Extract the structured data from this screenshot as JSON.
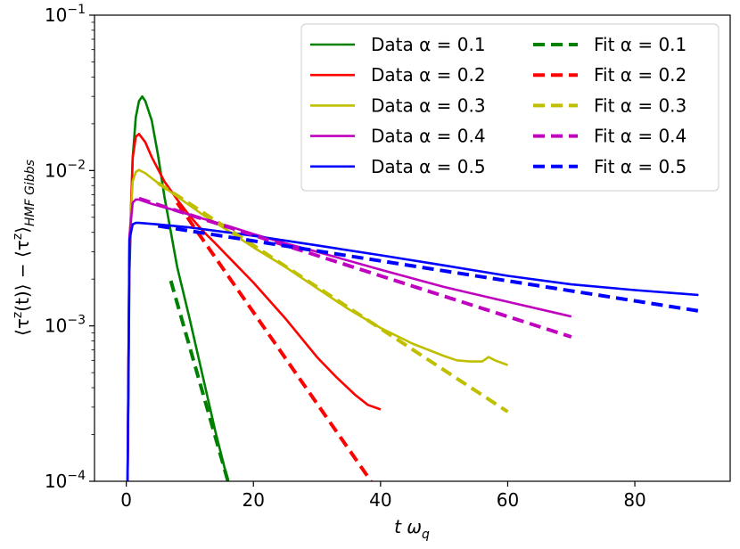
{
  "chart_data": {
    "type": "line",
    "xlabel": "t ω_q",
    "ylabel": "⟨τᶻ(t)⟩ − ⟨τᶻ⟩_HMF Gibbs",
    "yscale": "log",
    "xlim": [
      -5,
      95
    ],
    "ylim": [
      0.0001,
      0.1
    ],
    "x_ticks": [
      0,
      20,
      40,
      60,
      80
    ],
    "x_tick_labels": [
      "0",
      "20",
      "40",
      "60",
      "80"
    ],
    "y_ticks": [
      0.0001,
      0.001,
      0.01,
      0.1
    ],
    "y_tick_labels": [
      {
        "base": "10",
        "exp": "−4"
      },
      {
        "base": "10",
        "exp": "−3"
      },
      {
        "base": "10",
        "exp": "−2"
      },
      {
        "base": "10",
        "exp": "−1"
      }
    ],
    "legend_position": "top-right",
    "series": [
      {
        "name": "Data α = 0.1",
        "color": "#008000",
        "style": "solid",
        "x": [
          0.2,
          0.5,
          1.0,
          1.5,
          2.0,
          2.5,
          3.0,
          4.0,
          5.0,
          6.0,
          8.0,
          10.0,
          12.0,
          14.0,
          16.0
        ],
        "y": [
          0.0001,
          0.0022,
          0.012,
          0.022,
          0.028,
          0.03,
          0.028,
          0.021,
          0.0125,
          0.0068,
          0.0024,
          0.0011,
          0.00048,
          0.00021,
          0.0001
        ]
      },
      {
        "name": "Data α = 0.2",
        "color": "#ff0000",
        "style": "solid",
        "x": [
          0.2,
          0.5,
          1.0,
          1.5,
          2.0,
          3.0,
          4.0,
          6.0,
          8.0,
          10.0,
          12.0,
          14.0,
          16.0,
          20.0,
          25.0,
          30.0,
          33.0,
          36.0,
          38.0,
          40.0
        ],
        "y": [
          0.0001,
          0.003,
          0.012,
          0.0165,
          0.0172,
          0.0152,
          0.0122,
          0.0085,
          0.0065,
          0.0051,
          0.0041,
          0.0034,
          0.0028,
          0.0019,
          0.00112,
          0.00063,
          0.00047,
          0.00036,
          0.00031,
          0.00029
        ]
      },
      {
        "name": "Data α = 0.3",
        "color": "#bfbf00",
        "style": "solid",
        "x": [
          0.2,
          0.5,
          1.0,
          1.5,
          2.0,
          3.0,
          5.0,
          8.0,
          12.0,
          16.0,
          20.0,
          25.0,
          30.0,
          35.0,
          40.0,
          45.0,
          50.0,
          52.0,
          54.0,
          56.0,
          57.0,
          58.0,
          60.0
        ],
        "y": [
          0.0001,
          0.0035,
          0.0085,
          0.0098,
          0.0101,
          0.0096,
          0.0083,
          0.0068,
          0.0052,
          0.0041,
          0.0032,
          0.0024,
          0.00175,
          0.00128,
          0.00097,
          0.00077,
          0.00064,
          0.0006,
          0.00059,
          0.00059,
          0.00063,
          0.0006,
          0.00056
        ]
      },
      {
        "name": "Data α = 0.4",
        "color": "#bf00bf",
        "style": "solid",
        "x": [
          0.2,
          0.5,
          1.0,
          1.5,
          2.0,
          4.0,
          8.0,
          12.0,
          16.0,
          20.0,
          25.0,
          30.0,
          40.0,
          50.0,
          60.0,
          70.0
        ],
        "y": [
          0.0001,
          0.0038,
          0.0062,
          0.0065,
          0.0065,
          0.0061,
          0.0055,
          0.0049,
          0.0044,
          0.0039,
          0.0034,
          0.003,
          0.0023,
          0.00178,
          0.00143,
          0.00115
        ]
      },
      {
        "name": "Data α = 0.5",
        "color": "#0000ff",
        "style": "solid",
        "x": [
          0.2,
          0.5,
          1.0,
          1.5,
          2.0,
          5.0,
          10.0,
          20.0,
          30.0,
          40.0,
          50.0,
          60.0,
          70.0,
          80.0,
          90.0
        ],
        "y": [
          0.0001,
          0.0036,
          0.0045,
          0.0046,
          0.0046,
          0.0045,
          0.0043,
          0.0038,
          0.0033,
          0.00285,
          0.00245,
          0.0021,
          0.00185,
          0.0017,
          0.00158
        ]
      },
      {
        "name": "Fit α = 0.1",
        "color": "#008000",
        "style": "dashed",
        "x": [
          7.0,
          16.0
        ],
        "y": [
          0.00195,
          0.0001
        ]
      },
      {
        "name": "Fit α = 0.2",
        "color": "#ff0000",
        "style": "dashed",
        "x": [
          8.0,
          38.5
        ],
        "y": [
          0.0062,
          0.0001
        ]
      },
      {
        "name": "Fit α = 0.3",
        "color": "#bfbf00",
        "style": "dashed",
        "x": [
          5.0,
          60.0
        ],
        "y": [
          0.0083,
          0.00028
        ]
      },
      {
        "name": "Fit α = 0.4",
        "color": "#bf00bf",
        "style": "dashed",
        "x": [
          2.0,
          70.0
        ],
        "y": [
          0.0066,
          0.00085
        ]
      },
      {
        "name": "Fit α = 0.5",
        "color": "#0000ff",
        "style": "dashed",
        "x": [
          5.0,
          90.0
        ],
        "y": [
          0.0044,
          0.00125
        ]
      }
    ]
  }
}
